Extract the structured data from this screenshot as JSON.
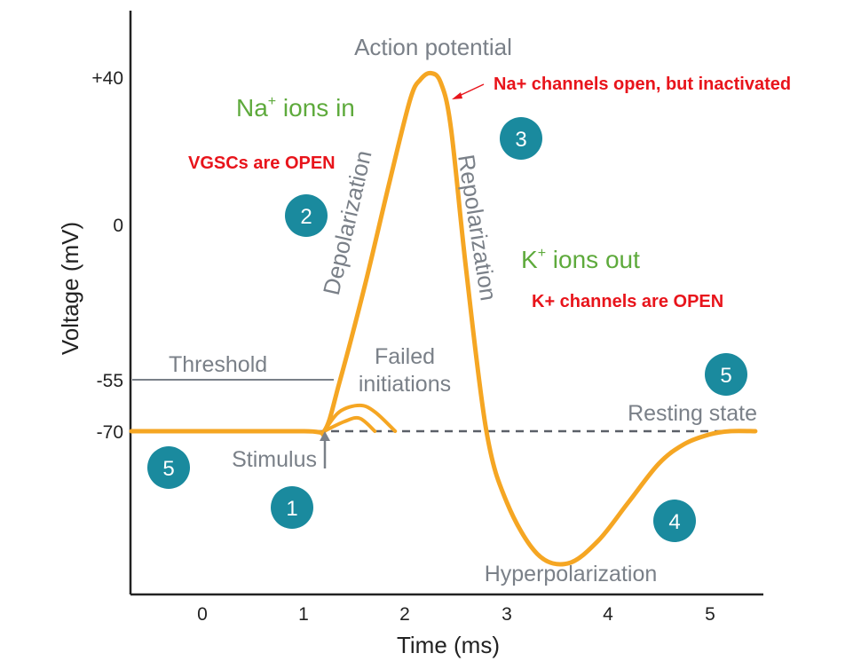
{
  "chart_data": {
    "type": "line",
    "title": "Action potential",
    "xlabel": "Time (ms)",
    "ylabel": "Voltage (mV)",
    "x_ticks": [
      "0",
      "1",
      "2",
      "3",
      "4",
      "5"
    ],
    "y_ticks": [
      "+40",
      "0",
      "-55",
      "-70"
    ],
    "xlim": [
      -0.7,
      5.45
    ],
    "ylim": [
      -110,
      58
    ],
    "threshold_mv": -55,
    "resting_mv": -70,
    "series": [
      {
        "x": [
          -0.7,
          1.0,
          1.2,
          1.35,
          1.6,
          1.85,
          2.05,
          2.15,
          2.25,
          2.35,
          2.45,
          2.6,
          2.8,
          3.0,
          3.3,
          3.6,
          3.9,
          4.2,
          4.5,
          4.75,
          5.0,
          5.2,
          5.45
        ],
        "y": [
          -70,
          -70,
          -70,
          -55,
          -25,
          8,
          33,
          39,
          41,
          38,
          24,
          -20,
          -70,
          -92,
          -108,
          -111,
          -104,
          -92,
          -80,
          -74,
          -71,
          -70,
          -70
        ]
      }
    ],
    "failed_initiations": [
      {
        "x": [
          1.2,
          1.35,
          1.55,
          1.7,
          1.9
        ],
        "y": [
          -70,
          -64,
          -62,
          -64,
          -70
        ]
      },
      {
        "x": [
          1.2,
          1.4,
          1.55,
          1.7
        ],
        "y": [
          -70,
          -67,
          -66,
          -70
        ]
      }
    ]
  },
  "labels": {
    "threshold": "Threshold",
    "failed_line1": "Failed",
    "failed_line2": "initiations",
    "resting": "Resting state",
    "stimulus": "Stimulus",
    "hyperpolarization": "Hyperpolarization",
    "depolarization": "Depolarization",
    "repolarization": "Repolarization",
    "na_in": "Na",
    "na_in_sup": "+",
    "na_in_rest": " ions in",
    "k_out": "K",
    "k_out_sup": "+",
    "k_out_rest": " ions out"
  },
  "annotations": {
    "na_channels": "Na+ channels open, but inactivated",
    "vgscs": "VGSCs are OPEN",
    "k_channels": "K+ channels  are OPEN"
  },
  "badges": {
    "b1": "1",
    "b2": "2",
    "b3": "3",
    "b4": "4",
    "b5_left": "5",
    "b5_right": "5"
  },
  "colors": {
    "curve": "#f5a623",
    "badge": "#1a8a9e",
    "axis": "#222222",
    "guide": "#7a8088",
    "green": "#5eaa3c",
    "red": "#e8141b"
  }
}
